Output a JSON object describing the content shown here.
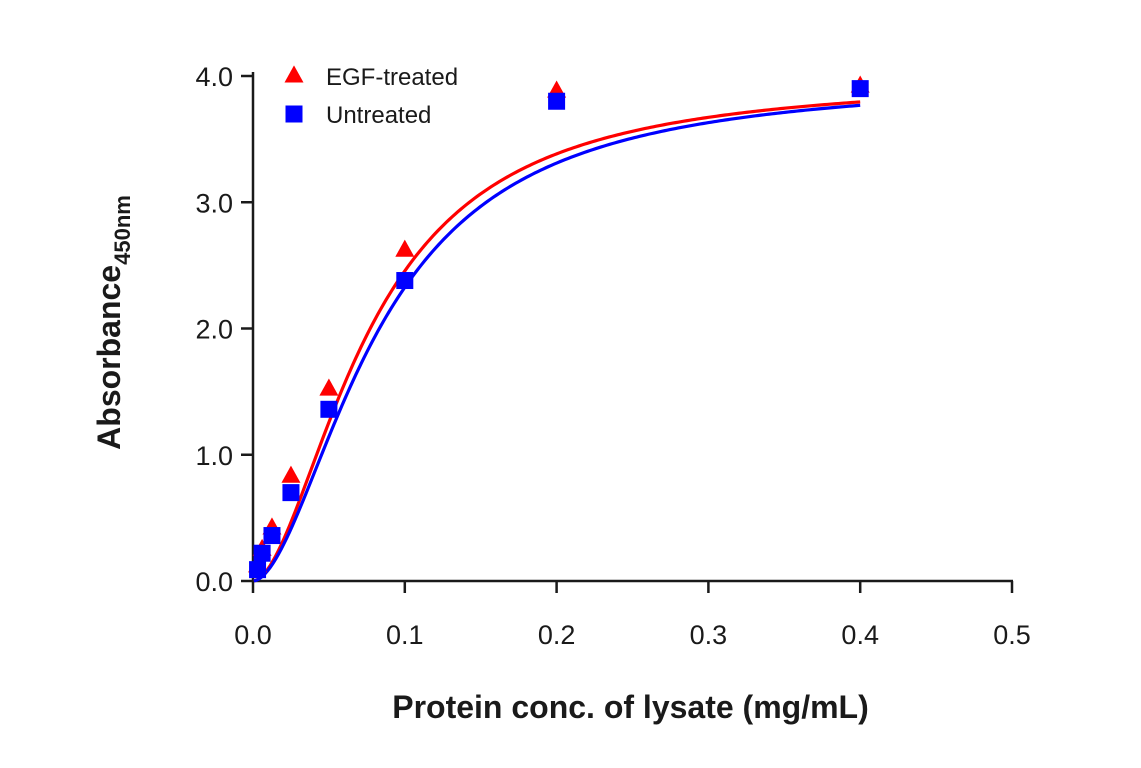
{
  "chart_data": {
    "type": "scatter",
    "xlabel": "Protein conc. of lysate (mg/mL)",
    "ylabel": {
      "main": "Absorbance",
      "subscript": "450nm"
    },
    "xlim": [
      0,
      0.5
    ],
    "ylim": [
      0,
      4.0
    ],
    "xticks": [
      "0.0",
      "0.1",
      "0.2",
      "0.3",
      "0.4",
      "0.5"
    ],
    "yticks": [
      "0.0",
      "1.0",
      "2.0",
      "3.0",
      "4.0"
    ],
    "grid": false,
    "legend_position": "top-left",
    "series": [
      {
        "name": "EGF-treated",
        "marker": "triangle",
        "color": "#ff0000",
        "x": [
          0.003,
          0.006,
          0.0125,
          0.025,
          0.05,
          0.1,
          0.2,
          0.4
        ],
        "y": [
          0.12,
          0.25,
          0.42,
          0.83,
          1.52,
          2.62,
          3.88,
          3.92
        ]
      },
      {
        "name": "Untreated",
        "marker": "square",
        "color": "#0000ff",
        "x": [
          0.003,
          0.006,
          0.0125,
          0.025,
          0.05,
          0.1,
          0.2,
          0.4
        ],
        "y": [
          0.09,
          0.22,
          0.36,
          0.7,
          1.36,
          2.38,
          3.8,
          3.9
        ]
      }
    ],
    "fit_curves": [
      {
        "series": "EGF-treated",
        "color": "#ff0000",
        "model": "4PL",
        "bottom": 0.0,
        "top": 3.99,
        "ec50": 0.077,
        "hill": 1.8
      },
      {
        "series": "Untreated",
        "color": "#0000ff",
        "model": "4PL",
        "bottom": 0.0,
        "top": 3.99,
        "ec50": 0.083,
        "hill": 1.8
      }
    ]
  }
}
